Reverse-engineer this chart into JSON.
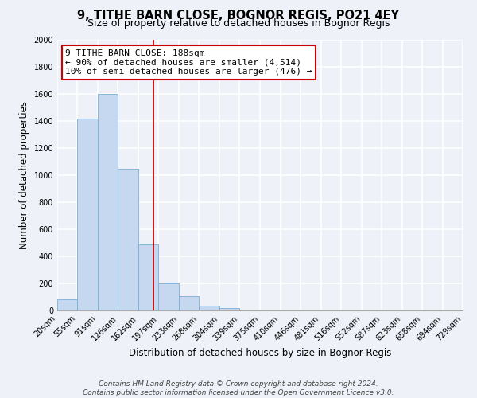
{
  "title": "9, TITHE BARN CLOSE, BOGNOR REGIS, PO21 4EY",
  "subtitle": "Size of property relative to detached houses in Bognor Regis",
  "xlabel": "Distribution of detached houses by size in Bognor Regis",
  "ylabel": "Number of detached properties",
  "bin_labels": [
    "20sqm",
    "55sqm",
    "91sqm",
    "126sqm",
    "162sqm",
    "197sqm",
    "233sqm",
    "268sqm",
    "304sqm",
    "339sqm",
    "375sqm",
    "410sqm",
    "446sqm",
    "481sqm",
    "516sqm",
    "552sqm",
    "587sqm",
    "623sqm",
    "658sqm",
    "694sqm",
    "729sqm"
  ],
  "bar_values": [
    85,
    1415,
    1600,
    1050,
    490,
    200,
    105,
    38,
    18,
    0,
    0,
    0,
    0,
    0,
    0,
    0,
    0,
    0,
    0,
    0
  ],
  "bar_left_edges": [
    20,
    55,
    91,
    126,
    162,
    197,
    233,
    268,
    304,
    339,
    375,
    410,
    446,
    481,
    516,
    552,
    587,
    623,
    658,
    694
  ],
  "bar_widths": [
    35,
    36,
    35,
    36,
    35,
    36,
    35,
    36,
    35,
    36,
    35,
    36,
    35,
    35,
    36,
    35,
    36,
    35,
    36,
    35
  ],
  "bar_color": "#c5d8f0",
  "bar_edge_color": "#7bafd4",
  "vline_x": 188,
  "vline_color": "#cc0000",
  "annotation_title": "9 TITHE BARN CLOSE: 188sqm",
  "annotation_line1": "← 90% of detached houses are smaller (4,514)",
  "annotation_line2": "10% of semi-detached houses are larger (476) →",
  "annotation_box_facecolor": "#ffffff",
  "annotation_box_edgecolor": "#cc0000",
  "ylim": [
    0,
    2000
  ],
  "yticks": [
    0,
    200,
    400,
    600,
    800,
    1000,
    1200,
    1400,
    1600,
    1800,
    2000
  ],
  "xlim_min": 20,
  "xlim_max": 729,
  "footer1": "Contains HM Land Registry data © Crown copyright and database right 2024.",
  "footer2": "Contains public sector information licensed under the Open Government Licence v3.0.",
  "background_color": "#eef2f8",
  "grid_color": "#ffffff",
  "title_fontsize": 10.5,
  "subtitle_fontsize": 9,
  "axis_label_fontsize": 8.5,
  "tick_fontsize": 7,
  "annotation_fontsize": 8,
  "footer_fontsize": 6.5
}
